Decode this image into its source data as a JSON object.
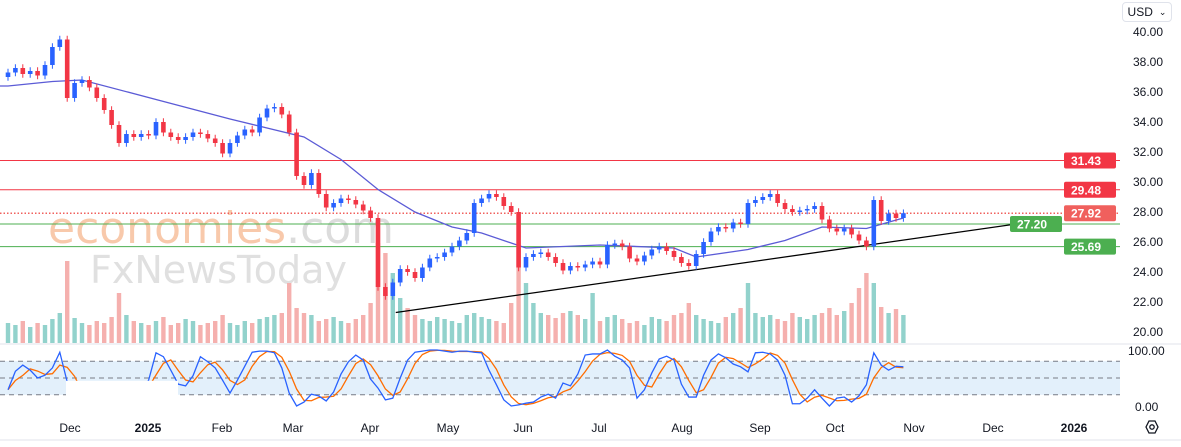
{
  "currency_button": {
    "label": "USD",
    "icon": "chevron-down-icon"
  },
  "settings_icon": "gear-icon",
  "watermark": {
    "brand1_main": "economies",
    "brand1_suffix": ".com",
    "brand2": "FxNewsToday"
  },
  "colors": {
    "up": "#2962ff",
    "down": "#f23645",
    "ma": "#5b5bd6",
    "stoch_k": "#2962ff",
    "stoch_d": "#ff6d00",
    "resistance": "#f23645",
    "support": "#4caf50",
    "last_price": "#f0605d",
    "trendline": "#000000",
    "vol_up": "#92d2cc",
    "vol_down": "#f5b0ae",
    "stoch_band": "#e3f0fb"
  },
  "chart_data": [
    {
      "type": "candlestick",
      "currency": "USD",
      "ylim": [
        20,
        40
      ],
      "y_ticks": [
        "40.00",
        "38.00",
        "36.00",
        "34.00",
        "32.00",
        "30.00",
        "28.00",
        "26.00",
        "24.00",
        "22.00",
        "20.00"
      ],
      "x_ticks": [
        "Dec",
        "2025",
        "Feb",
        "Mar",
        "Apr",
        "May",
        "Jun",
        "Jul",
        "Aug",
        "Sep",
        "Oct",
        "Nov",
        "Dec",
        "2026"
      ],
      "close": [
        37.3,
        37.6,
        37.2,
        37.4,
        37.1,
        37.8,
        39.0,
        39.5,
        35.6,
        36.6,
        36.8,
        36.3,
        35.6,
        34.8,
        33.8,
        32.6,
        33.2,
        33.0,
        33.2,
        33.1,
        34.0,
        33.3,
        33.0,
        32.8,
        33.0,
        33.3,
        33.2,
        32.9,
        32.6,
        31.9,
        32.6,
        33.1,
        33.5,
        33.3,
        34.3,
        34.9,
        35.0,
        34.5,
        33.3,
        30.4,
        29.8,
        30.6,
        29.2,
        28.3,
        28.6,
        28.9,
        28.8,
        28.5,
        28.1,
        27.6,
        23.0,
        22.4,
        23.3,
        24.2,
        24.0,
        23.6,
        24.3,
        24.9,
        25.0,
        25.3,
        25.7,
        26.1,
        26.6,
        28.6,
        28.9,
        29.2,
        29.0,
        28.4,
        28.0,
        24.3,
        25.0,
        25.2,
        25.3,
        25.0,
        24.6,
        24.1,
        24.4,
        24.3,
        24.5,
        24.7,
        24.5,
        25.8,
        25.9,
        25.7,
        24.9,
        24.7,
        25.1,
        25.5,
        25.7,
        25.4,
        25.0,
        24.6,
        24.4,
        25.2,
        26.0,
        26.7,
        27.0,
        26.9,
        27.3,
        27.2,
        28.6,
        28.8,
        29.0,
        29.2,
        28.6,
        28.2,
        28.0,
        28.1,
        28.2,
        28.4,
        27.5,
        26.9,
        26.7,
        26.9,
        26.5,
        26.1,
        25.7,
        28.8,
        27.4,
        27.9,
        27.6,
        27.92
      ],
      "volume": [
        20,
        18,
        22,
        16,
        20,
        18,
        24,
        30,
        82,
        25,
        20,
        18,
        22,
        20,
        26,
        50,
        28,
        22,
        20,
        18,
        22,
        26,
        18,
        20,
        24,
        22,
        18,
        20,
        22,
        28,
        20,
        18,
        22,
        20,
        24,
        26,
        28,
        30,
        60,
        35,
        30,
        28,
        22,
        24,
        26,
        22,
        20,
        24,
        28,
        40,
        100,
        90,
        70,
        45,
        35,
        28,
        24,
        22,
        26,
        24,
        22,
        20,
        28,
        30,
        26,
        24,
        22,
        20,
        40,
        95,
        60,
        40,
        30,
        28,
        25,
        30,
        32,
        28,
        24,
        50,
        22,
        26,
        28,
        24,
        20,
        22,
        18,
        26,
        24,
        22,
        28,
        30,
        40,
        28,
        24,
        22,
        20,
        26,
        30,
        35,
        60,
        30,
        26,
        28,
        24,
        22,
        30,
        26,
        24,
        28,
        30,
        35,
        28,
        32,
        40,
        55,
        70,
        60,
        36,
        30,
        34,
        28
      ],
      "moving_average": [
        {
          "i": 0,
          "v": 36.4
        },
        {
          "i": 6,
          "v": 36.7
        },
        {
          "i": 10,
          "v": 36.8
        },
        {
          "i": 20,
          "v": 35.5
        },
        {
          "i": 30,
          "v": 34.2
        },
        {
          "i": 40,
          "v": 33.0
        },
        {
          "i": 45,
          "v": 31.5
        },
        {
          "i": 50,
          "v": 29.5
        },
        {
          "i": 55,
          "v": 28.0
        },
        {
          "i": 60,
          "v": 27.0
        },
        {
          "i": 64,
          "v": 26.6
        },
        {
          "i": 70,
          "v": 25.6
        },
        {
          "i": 80,
          "v": 25.8
        },
        {
          "i": 90,
          "v": 25.6
        },
        {
          "i": 93,
          "v": 25.0
        },
        {
          "i": 100,
          "v": 25.5
        },
        {
          "i": 105,
          "v": 26.1
        },
        {
          "i": 110,
          "v": 27.0
        },
        {
          "i": 116,
          "v": 26.9
        },
        {
          "i": 121,
          "v": 27.6
        }
      ],
      "horizontal_levels": [
        {
          "price": 31.43,
          "label": "31.43",
          "kind": "resistance"
        },
        {
          "price": 29.48,
          "label": "29.48",
          "kind": "resistance"
        },
        {
          "price": 27.92,
          "label": "27.92",
          "kind": "last_price"
        },
        {
          "price": 27.2,
          "label": "27.20",
          "kind": "support"
        },
        {
          "price": 25.69,
          "label": "25.69",
          "kind": "support"
        }
      ],
      "trendline": {
        "start": {
          "i": 52.4,
          "price": 21.3
        },
        "end": {
          "i": 140.5,
          "price": 27.5
        }
      }
    },
    {
      "type": "line",
      "indicator": "stochastic",
      "ylim": [
        0,
        100
      ],
      "y_ticks": [
        "100.00",
        "0.00"
      ],
      "bands": [
        80,
        50,
        20
      ],
      "k": [
        29,
        62,
        73,
        64,
        50,
        55,
        68,
        96,
        43,
        20,
        15,
        20,
        25,
        20,
        15,
        10,
        20,
        30,
        25,
        46,
        95,
        88,
        64,
        39,
        36,
        54,
        88,
        79,
        68,
        46,
        23,
        46,
        71,
        96,
        98,
        98,
        95,
        68,
        23,
        0,
        7,
        21,
        18,
        9,
        25,
        57,
        79,
        91,
        82,
        48,
        32,
        11,
        14,
        50,
        82,
        96,
        98,
        100,
        100,
        98,
        96,
        98,
        98,
        96,
        95,
        64,
        38,
        11,
        0,
        2,
        5,
        7,
        16,
        21,
        14,
        41,
        36,
        57,
        91,
        93,
        93,
        100,
        89,
        82,
        68,
        14,
        29,
        59,
        84,
        89,
        82,
        39,
        16,
        16,
        55,
        82,
        93,
        86,
        75,
        70,
        61,
        95,
        96,
        93,
        82,
        55,
        4,
        4,
        14,
        29,
        14,
        0,
        14,
        16,
        7,
        18,
        38,
        95,
        73,
        64,
        71,
        70
      ]
    }
  ]
}
